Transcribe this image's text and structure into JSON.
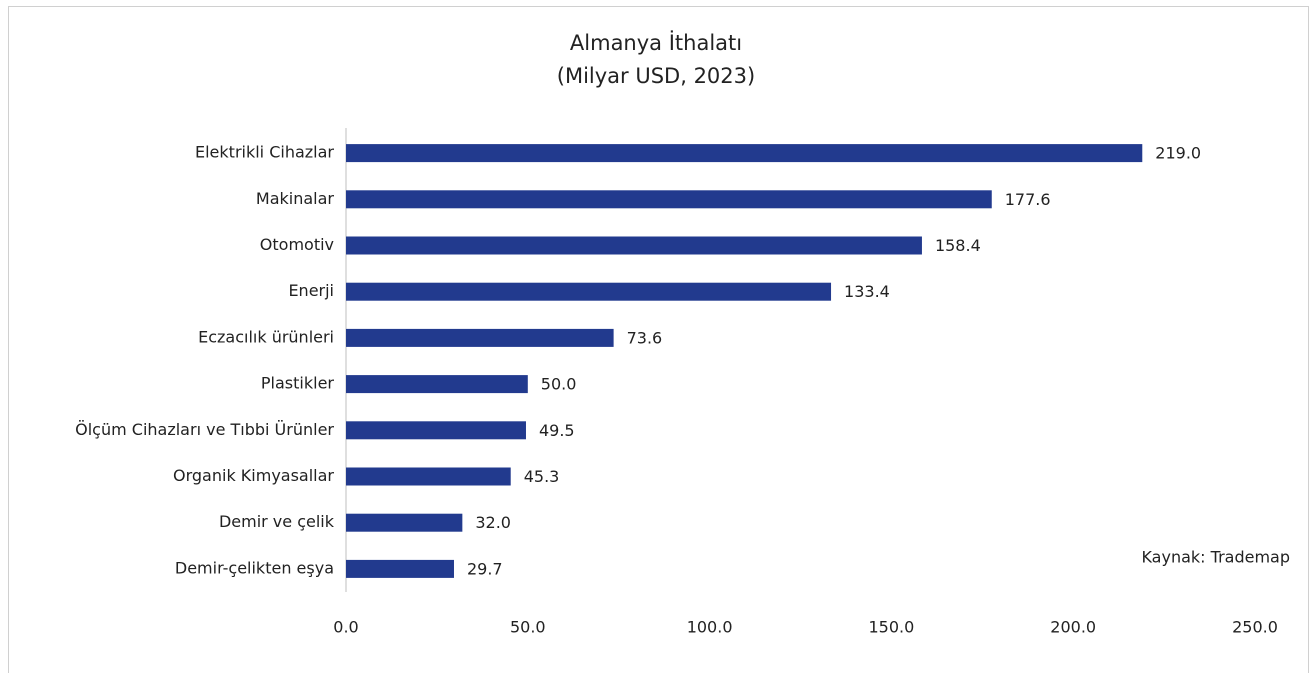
{
  "chart_data": {
    "type": "bar",
    "orientation": "horizontal",
    "title": "Almanya İthalatı",
    "subtitle": "(Milyar USD, 2023)",
    "categories": [
      "Elektrikli Cihazlar",
      "Makinalar",
      "Otomotiv",
      "Enerji",
      "Eczacılık ürünleri",
      "Plastikler",
      "Ölçüm Cihazları ve Tıbbi Ürünler",
      "Organik Kimyasallar",
      "Demir ve çelik",
      "Demir-çelikten eşya"
    ],
    "values": [
      219.0,
      177.6,
      158.4,
      133.4,
      73.6,
      50.0,
      49.5,
      45.3,
      32.0,
      29.7
    ],
    "value_labels": [
      "219.0",
      "177.6",
      "158.4",
      "133.4",
      "73.6",
      "50.0",
      "49.5",
      "45.3",
      "32.0",
      "29.7"
    ],
    "color": "#223a8e",
    "xlim": [
      0,
      250
    ],
    "xticks": [
      {
        "value": 0,
        "label": "0.0"
      },
      {
        "value": 50,
        "label": "50.0"
      },
      {
        "value": 100,
        "label": "100.0"
      },
      {
        "value": 150,
        "label": "150.0"
      },
      {
        "value": 200,
        "label": "200.0"
      },
      {
        "value": 250,
        "label": "250.0"
      }
    ],
    "grid": false,
    "annotation": "Kaynak: Trademap"
  }
}
